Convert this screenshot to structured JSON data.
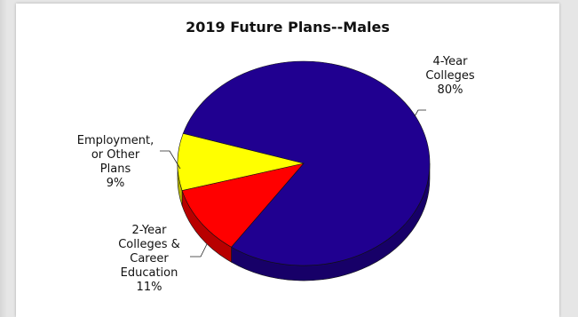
{
  "chart_data": {
    "type": "pie",
    "title": "2019 Future Plans--Males",
    "categories": [
      "4-Year Colleges",
      "2-Year Colleges & Career Education",
      "Employment, or Other Plans"
    ],
    "values": [
      80,
      11,
      9
    ],
    "value_labels": [
      "80%",
      "11%",
      "9%"
    ],
    "colors": [
      "#200090",
      "#ff0000",
      "#ffff00"
    ],
    "label_lines": [
      [
        "4-Year",
        "Colleges",
        "80%"
      ],
      [
        "2-Year",
        "Colleges &",
        "Career",
        "Education",
        "11%"
      ],
      [
        "Employment,",
        "or Other",
        "Plans",
        "9%"
      ]
    ],
    "style": "3d"
  }
}
